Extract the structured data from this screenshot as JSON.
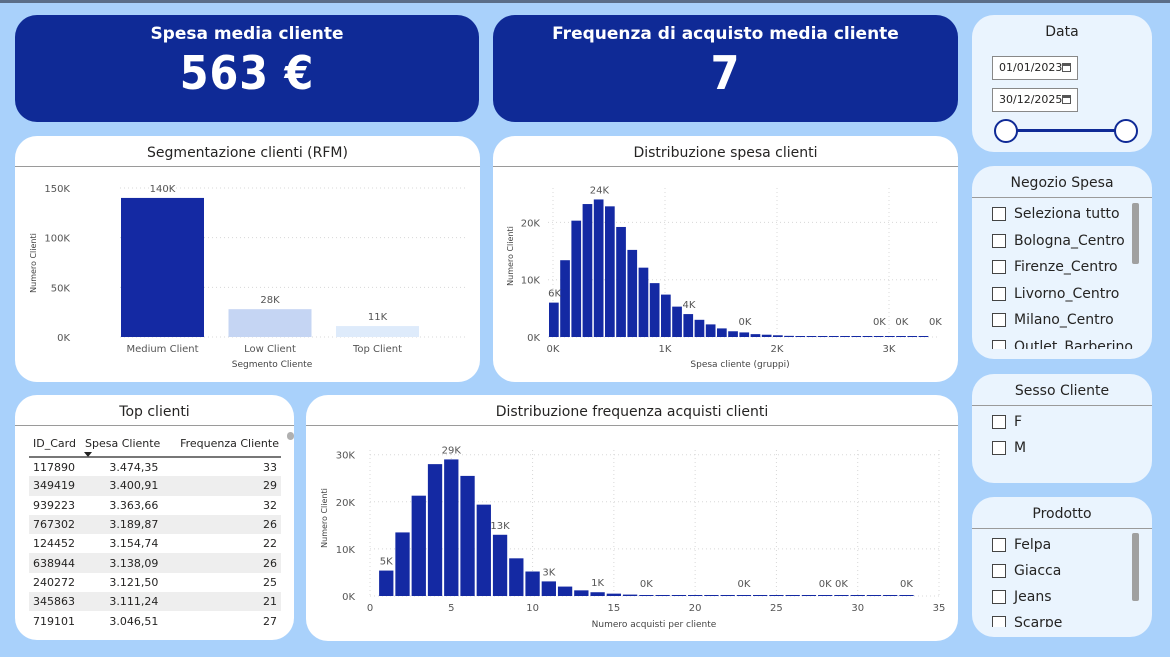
{
  "kpis": {
    "spesa_media": {
      "title": "Spesa media cliente",
      "value": "563 €"
    },
    "frequenza_media": {
      "title": "Frequenza di acquisto media cliente",
      "value": "7"
    }
  },
  "colors": {
    "background": "#a9d1fb",
    "kpi": "#0f2a96",
    "bar": "#1429a3",
    "bar_low": "#c5d5f3",
    "bar_top": "#deebfb",
    "slicer_bg": "#eaf4fe"
  },
  "rfm_chart": {
    "title": "Segmentazione clienti (RFM)",
    "chart_data": {
      "type": "bar",
      "title": "Segmentazione clienti (RFM)",
      "xlabel": "Segmento Cliente",
      "ylabel": "Numero Clienti",
      "categories": [
        "Medium Client",
        "Low Client",
        "Top Client"
      ],
      "values": [
        140000,
        28000,
        11000
      ],
      "data_labels": [
        "140K",
        "28K",
        "11K"
      ],
      "yticks": [
        {
          "v": 0,
          "l": "0K"
        },
        {
          "v": 50000,
          "l": "50K"
        },
        {
          "v": 100000,
          "l": "100K"
        },
        {
          "v": 150000,
          "l": "150K"
        }
      ],
      "ylim": [
        0,
        150000
      ],
      "grid": true
    }
  },
  "spesa_chart": {
    "title": "Distribuzione spesa clienti",
    "chart_data": {
      "type": "bar",
      "title": "Distribuzione spesa clienti",
      "xlabel": "Spesa cliente (gruppi)",
      "ylabel": "Numero Clienti",
      "x_start": 0,
      "bin_width": 100,
      "values": [
        6000,
        13400,
        20300,
        23200,
        24000,
        22800,
        19200,
        15200,
        12100,
        9400,
        7400,
        5300,
        4000,
        3000,
        2200,
        1500,
        1000,
        800,
        500,
        400,
        300,
        200,
        150,
        120,
        90,
        70,
        60,
        50,
        40,
        30,
        25,
        20,
        20,
        15
      ],
      "data_labels": [
        {
          "i": 0,
          "l": "6K"
        },
        {
          "i": 4,
          "l": "24K"
        },
        {
          "i": 12,
          "l": "4K"
        },
        {
          "i": 17,
          "l": "0K"
        },
        {
          "i": 29,
          "l": "0K"
        },
        {
          "i": 31,
          "l": "0K"
        },
        {
          "i": 34,
          "l": "0K"
        }
      ],
      "yticks": [
        {
          "v": 0,
          "l": "0K"
        },
        {
          "v": 10000,
          "l": "10K"
        },
        {
          "v": 20000,
          "l": "20K"
        }
      ],
      "xticks": [
        {
          "v": 0,
          "l": "0K"
        },
        {
          "v": 1000,
          "l": "1K"
        },
        {
          "v": 2000,
          "l": "2K"
        },
        {
          "v": 3000,
          "l": "3K"
        }
      ],
      "xlim": [
        0,
        3500
      ],
      "ylim": [
        0,
        26000
      ],
      "grid": true
    }
  },
  "freq_chart": {
    "title": "Distribuzione frequenza acquisti clienti",
    "chart_data": {
      "type": "bar",
      "title": "Distribuzione frequenza acquisti clienti",
      "xlabel": "Numero acquisti per cliente",
      "ylabel": "Numero Clienti",
      "x": [
        1,
        2,
        3,
        4,
        5,
        6,
        7,
        8,
        9,
        10,
        11,
        12,
        13,
        14,
        15,
        16,
        17,
        18,
        19,
        20,
        21,
        22,
        23,
        24,
        25,
        26,
        27,
        28,
        29,
        30,
        31,
        32,
        33
      ],
      "values": [
        5400,
        13500,
        21300,
        28000,
        29000,
        25500,
        19400,
        13000,
        8000,
        5200,
        3100,
        2000,
        1200,
        800,
        500,
        300,
        200,
        120,
        80,
        50,
        30,
        20,
        15,
        10,
        8,
        5,
        4,
        3,
        2,
        2,
        1,
        1,
        1
      ],
      "data_labels": [
        {
          "x": 1,
          "l": "5K"
        },
        {
          "x": 5,
          "l": "29K"
        },
        {
          "x": 8,
          "l": "13K"
        },
        {
          "x": 11,
          "l": "3K"
        },
        {
          "x": 14,
          "l": "1K"
        },
        {
          "x": 17,
          "l": "0K"
        },
        {
          "x": 23,
          "l": "0K"
        },
        {
          "x": 28,
          "l": "0K"
        },
        {
          "x": 29,
          "l": "0K"
        },
        {
          "x": 33,
          "l": "0K"
        }
      ],
      "yticks": [
        {
          "v": 0,
          "l": "0K"
        },
        {
          "v": 10000,
          "l": "10K"
        },
        {
          "v": 20000,
          "l": "20K"
        },
        {
          "v": 30000,
          "l": "30K"
        }
      ],
      "xticks": [
        0,
        5,
        10,
        15,
        20,
        25,
        30,
        35
      ],
      "xlim": [
        0,
        35
      ],
      "ylim": [
        0,
        31000
      ],
      "grid": true
    }
  },
  "top_clients": {
    "title": "Top clienti",
    "columns": [
      "ID_Card",
      "Spesa Cliente",
      "Frequenza Cliente"
    ],
    "rows": [
      [
        "117890",
        "3.474,35",
        "33"
      ],
      [
        "349419",
        "3.400,91",
        "29"
      ],
      [
        "939223",
        "3.363,66",
        "32"
      ],
      [
        "767302",
        "3.189,87",
        "26"
      ],
      [
        "124452",
        "3.154,74",
        "22"
      ],
      [
        "638944",
        "3.138,09",
        "26"
      ],
      [
        "240272",
        "3.121,50",
        "25"
      ],
      [
        "345863",
        "3.111,24",
        "21"
      ],
      [
        "719101",
        "3.046,51",
        "27"
      ]
    ]
  },
  "slicers": {
    "data": {
      "title": "Data",
      "from": "01/01/2023",
      "to": "30/12/2025"
    },
    "negozio": {
      "title": "Negozio Spesa",
      "items": [
        "Seleziona tutto",
        "Bologna_Centro",
        "Firenze_Centro",
        "Livorno_Centro",
        "Milano_Centro",
        "Outlet_Barberino"
      ]
    },
    "sesso": {
      "title": "Sesso Cliente",
      "items": [
        "F",
        "M"
      ]
    },
    "prodotto": {
      "title": "Prodotto",
      "items": [
        "Felpa",
        "Giacca",
        "Jeans",
        "Scarpe"
      ]
    }
  }
}
